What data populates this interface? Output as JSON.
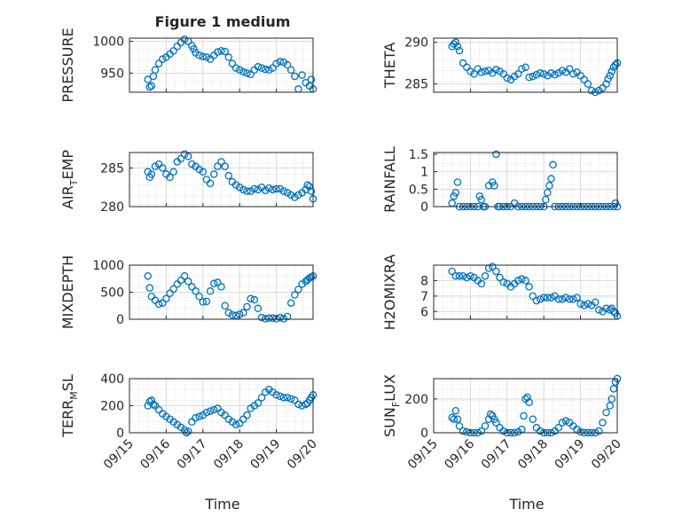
{
  "figure": {
    "title": "Figure 1 medium",
    "xlabel": "Time",
    "marker_color": "#0072BD",
    "grid_color": "#d9d9d9",
    "axis_color": "#262626"
  },
  "chart_data": [
    {
      "type": "scatter",
      "ylabel": "PRESSURE",
      "ylim": [
        920,
        1005
      ],
      "yticks": [
        950,
        1000
      ],
      "x": [
        0.5,
        0.55,
        0.6,
        0.65,
        0.7,
        0.8,
        0.9,
        1.0,
        1.1,
        1.2,
        1.3,
        1.4,
        1.5,
        1.6,
        1.7,
        1.75,
        1.8,
        1.9,
        2.0,
        2.1,
        2.2,
        2.3,
        2.4,
        2.5,
        2.6,
        2.7,
        2.8,
        2.9,
        3.0,
        3.1,
        3.2,
        3.3,
        3.4,
        3.5,
        3.6,
        3.7,
        3.8,
        3.9,
        4.0,
        4.1,
        4.2,
        4.3,
        4.4,
        4.5,
        4.6,
        4.7,
        4.8,
        4.9,
        4.95,
        5.0
      ],
      "y": [
        940,
        928,
        930,
        945,
        955,
        965,
        972,
        975,
        980,
        985,
        992,
        998,
        1003,
        1000,
        993,
        988,
        982,
        978,
        976,
        975,
        972,
        978,
        983,
        985,
        984,
        975,
        965,
        958,
        955,
        952,
        950,
        948,
        955,
        960,
        958,
        956,
        955,
        958,
        965,
        968,
        967,
        963,
        955,
        945,
        925,
        947,
        935,
        930,
        940,
        925
      ]
    },
    {
      "type": "scatter",
      "ylabel": "THETA",
      "ylim": [
        284,
        290.5
      ],
      "yticks": [
        285,
        290
      ],
      "x": [
        0.5,
        0.55,
        0.6,
        0.65,
        0.7,
        0.8,
        0.9,
        1.0,
        1.1,
        1.2,
        1.3,
        1.4,
        1.5,
        1.6,
        1.7,
        1.8,
        1.9,
        2.0,
        2.1,
        2.2,
        2.3,
        2.4,
        2.5,
        2.6,
        2.7,
        2.8,
        2.9,
        3.0,
        3.1,
        3.2,
        3.3,
        3.4,
        3.5,
        3.6,
        3.7,
        3.8,
        3.9,
        4.0,
        4.1,
        4.2,
        4.3,
        4.4,
        4.5,
        4.6,
        4.7,
        4.75,
        4.8,
        4.85,
        4.9,
        4.95,
        5.0
      ],
      "y": [
        289.5,
        289.8,
        290,
        289.5,
        289,
        287.5,
        287,
        286.5,
        286.2,
        286.8,
        286.4,
        286.5,
        286.6,
        286.3,
        286.7,
        286.5,
        286.2,
        285.7,
        285.5,
        285.9,
        286.2,
        286.8,
        287,
        285.8,
        285.9,
        286.1,
        286.3,
        286.2,
        286,
        286.3,
        286.1,
        286.3,
        286.6,
        286.4,
        286.8,
        286.2,
        286.4,
        286,
        285.5,
        285,
        284.2,
        284,
        284.2,
        284.5,
        285,
        285.6,
        286,
        286.5,
        287,
        287.3,
        287.5
      ]
    },
    {
      "type": "scatter",
      "ylabel": "AIR_TEMP",
      "ylim": [
        280,
        287
      ],
      "yticks": [
        280,
        285
      ],
      "x": [
        0.5,
        0.55,
        0.6,
        0.7,
        0.8,
        0.9,
        1.0,
        1.1,
        1.2,
        1.3,
        1.4,
        1.5,
        1.6,
        1.7,
        1.8,
        1.9,
        2.0,
        2.1,
        2.2,
        2.3,
        2.4,
        2.5,
        2.6,
        2.7,
        2.8,
        2.9,
        3.0,
        3.1,
        3.2,
        3.3,
        3.4,
        3.5,
        3.6,
        3.7,
        3.8,
        3.9,
        4.0,
        4.1,
        4.2,
        4.3,
        4.4,
        4.5,
        4.6,
        4.7,
        4.8,
        4.85,
        4.9,
        4.95,
        5.0
      ],
      "y": [
        284.5,
        283.8,
        284.2,
        285.2,
        285.5,
        285,
        284.2,
        283.8,
        284.5,
        285.8,
        286.2,
        286.8,
        286.5,
        285.5,
        285.2,
        284.8,
        284.5,
        283.5,
        283,
        284.2,
        285.2,
        285.8,
        285.2,
        284,
        283.2,
        282.8,
        282.5,
        282.2,
        282,
        282,
        282.3,
        282.2,
        282.5,
        282.1,
        282.4,
        282.2,
        282.3,
        282.3,
        282,
        281.8,
        281.5,
        281.2,
        281.5,
        281.8,
        282.2,
        282.8,
        282.6,
        282,
        281
      ]
    },
    {
      "type": "scatter",
      "ylabel": "RAINFALL",
      "ylim": [
        0,
        1.55
      ],
      "yticks": [
        0,
        0.5,
        1,
        1.5
      ],
      "x": [
        0.5,
        0.55,
        0.6,
        0.65,
        0.7,
        0.8,
        0.9,
        1.0,
        1.1,
        1.2,
        1.25,
        1.3,
        1.35,
        1.4,
        1.5,
        1.6,
        1.65,
        1.7,
        1.75,
        1.8,
        1.9,
        2.0,
        2.1,
        2.2,
        2.3,
        2.4,
        2.5,
        2.6,
        2.7,
        2.8,
        2.9,
        3.0,
        3.05,
        3.1,
        3.15,
        3.2,
        3.25,
        3.3,
        3.4,
        3.5,
        3.6,
        3.7,
        3.8,
        3.9,
        4.0,
        4.1,
        4.2,
        4.3,
        4.4,
        4.5,
        4.6,
        4.7,
        4.8,
        4.9,
        4.95,
        5.0
      ],
      "y": [
        0.1,
        0.3,
        0.4,
        0.7,
        0,
        0,
        0,
        0,
        0,
        0,
        0.3,
        0.2,
        0,
        0,
        0.6,
        0.7,
        0.6,
        1.5,
        0,
        0,
        0,
        0,
        0,
        0.1,
        0,
        0,
        0,
        0,
        0,
        0,
        0,
        0,
        0.2,
        0.4,
        0.6,
        0.8,
        1.2,
        0,
        0,
        0,
        0,
        0,
        0,
        0,
        0,
        0,
        0,
        0,
        0,
        0,
        0,
        0,
        0,
        0,
        0.1,
        0
      ]
    },
    {
      "type": "scatter",
      "ylabel": "MIXDEPTH",
      "ylim": [
        0,
        1000
      ],
      "yticks": [
        0,
        500,
        1000
      ],
      "x": [
        0.5,
        0.55,
        0.6,
        0.7,
        0.8,
        0.9,
        1.0,
        1.1,
        1.2,
        1.3,
        1.4,
        1.5,
        1.6,
        1.7,
        1.8,
        1.9,
        2.0,
        2.1,
        2.2,
        2.3,
        2.4,
        2.5,
        2.6,
        2.7,
        2.8,
        2.9,
        3.0,
        3.1,
        3.2,
        3.3,
        3.4,
        3.5,
        3.6,
        3.7,
        3.8,
        3.9,
        4.0,
        4.1,
        4.2,
        4.3,
        4.4,
        4.5,
        4.6,
        4.7,
        4.8,
        4.85,
        4.9,
        4.95,
        5.0
      ],
      "y": [
        800,
        580,
        420,
        350,
        280,
        300,
        380,
        480,
        560,
        650,
        720,
        800,
        700,
        600,
        520,
        420,
        320,
        330,
        520,
        660,
        680,
        600,
        250,
        120,
        80,
        70,
        90,
        120,
        230,
        380,
        360,
        200,
        30,
        10,
        20,
        20,
        10,
        30,
        10,
        50,
        300,
        450,
        550,
        650,
        700,
        730,
        760,
        780,
        800
      ]
    },
    {
      "type": "scatter",
      "ylabel": "H2OMIXRA",
      "ylim": [
        5.5,
        9
      ],
      "yticks": [
        6,
        7,
        8
      ],
      "x": [
        0.5,
        0.6,
        0.7,
        0.8,
        0.9,
        1.0,
        1.1,
        1.2,
        1.3,
        1.4,
        1.5,
        1.6,
        1.7,
        1.8,
        1.9,
        2.0,
        2.1,
        2.2,
        2.3,
        2.4,
        2.5,
        2.6,
        2.7,
        2.8,
        2.9,
        3.0,
        3.1,
        3.2,
        3.3,
        3.4,
        3.5,
        3.6,
        3.7,
        3.8,
        3.9,
        4.0,
        4.1,
        4.2,
        4.3,
        4.4,
        4.5,
        4.6,
        4.7,
        4.8,
        4.85,
        4.9,
        4.95,
        5.0
      ],
      "y": [
        8.6,
        8.3,
        8.3,
        8.3,
        8.2,
        8.3,
        8.2,
        8.0,
        7.8,
        8.3,
        8.8,
        8.9,
        8.6,
        8.2,
        7.9,
        7.8,
        7.6,
        7.8,
        8.0,
        8.1,
        8.0,
        7.6,
        7.0,
        6.7,
        6.8,
        6.9,
        6.9,
        6.9,
        7.0,
        6.8,
        6.8,
        6.9,
        6.8,
        6.8,
        6.9,
        6.5,
        6.4,
        6.5,
        6.4,
        6.6,
        6.1,
        6.0,
        6.2,
        6.1,
        6.2,
        6.0,
        5.9,
        5.7
      ]
    },
    {
      "type": "scatter",
      "ylabel": "TERR_MSL",
      "ylim": [
        0,
        400
      ],
      "yticks": [
        0,
        200,
        400
      ],
      "x": [
        0.5,
        0.55,
        0.6,
        0.65,
        0.7,
        0.8,
        0.9,
        1.0,
        1.1,
        1.2,
        1.3,
        1.4,
        1.5,
        1.55,
        1.6,
        1.7,
        1.8,
        1.9,
        2.0,
        2.1,
        2.2,
        2.3,
        2.4,
        2.5,
        2.6,
        2.7,
        2.8,
        2.9,
        3.0,
        3.1,
        3.2,
        3.3,
        3.4,
        3.5,
        3.6,
        3.7,
        3.8,
        3.9,
        4.0,
        4.1,
        4.2,
        4.3,
        4.4,
        4.5,
        4.6,
        4.7,
        4.8,
        4.85,
        4.9,
        4.95,
        5.0
      ],
      "y": [
        200,
        230,
        240,
        210,
        200,
        170,
        140,
        120,
        100,
        80,
        60,
        40,
        20,
        0,
        10,
        80,
        110,
        120,
        130,
        150,
        160,
        170,
        180,
        150,
        130,
        100,
        80,
        60,
        70,
        100,
        130,
        180,
        200,
        220,
        260,
        300,
        320,
        300,
        280,
        270,
        260,
        260,
        250,
        240,
        210,
        200,
        210,
        220,
        240,
        260,
        280
      ]
    },
    {
      "type": "scatter",
      "ylabel": "SUN_FLUX",
      "ylim": [
        0,
        320
      ],
      "yticks": [
        0,
        200
      ],
      "x": [
        0.5,
        0.55,
        0.6,
        0.65,
        0.7,
        0.8,
        0.9,
        1.0,
        1.1,
        1.2,
        1.3,
        1.4,
        1.5,
        1.55,
        1.6,
        1.65,
        1.7,
        1.8,
        1.9,
        2.0,
        2.1,
        2.2,
        2.3,
        2.4,
        2.45,
        2.5,
        2.55,
        2.6,
        2.7,
        2.8,
        2.9,
        3.0,
        3.1,
        3.2,
        3.3,
        3.4,
        3.5,
        3.6,
        3.7,
        3.8,
        3.9,
        4.0,
        4.1,
        4.2,
        4.3,
        4.4,
        4.5,
        4.6,
        4.7,
        4.8,
        4.85,
        4.9,
        4.95,
        5.0
      ],
      "y": [
        90,
        80,
        130,
        80,
        40,
        10,
        5,
        0,
        0,
        0,
        10,
        40,
        80,
        110,
        100,
        80,
        60,
        30,
        10,
        0,
        0,
        0,
        5,
        20,
        100,
        200,
        210,
        180,
        80,
        30,
        10,
        0,
        0,
        0,
        10,
        30,
        60,
        70,
        60,
        40,
        20,
        5,
        0,
        0,
        0,
        0,
        10,
        60,
        120,
        160,
        200,
        260,
        300,
        320
      ]
    }
  ],
  "x_axis": {
    "tick_values": [
      0,
      1,
      2,
      3,
      4,
      5
    ],
    "tick_labels": [
      "09/15",
      "09/16",
      "09/17",
      "09/18",
      "09/19",
      "09/20"
    ],
    "range": [
      0,
      5
    ]
  },
  "ylabel_parts": {
    "AIR_TEMP": [
      "AIR",
      "T",
      "EMP"
    ],
    "TERR_MSL": [
      "TERR",
      "M",
      "SL"
    ],
    "SUN_FLUX": [
      "SUN",
      "F",
      "LUX"
    ]
  }
}
